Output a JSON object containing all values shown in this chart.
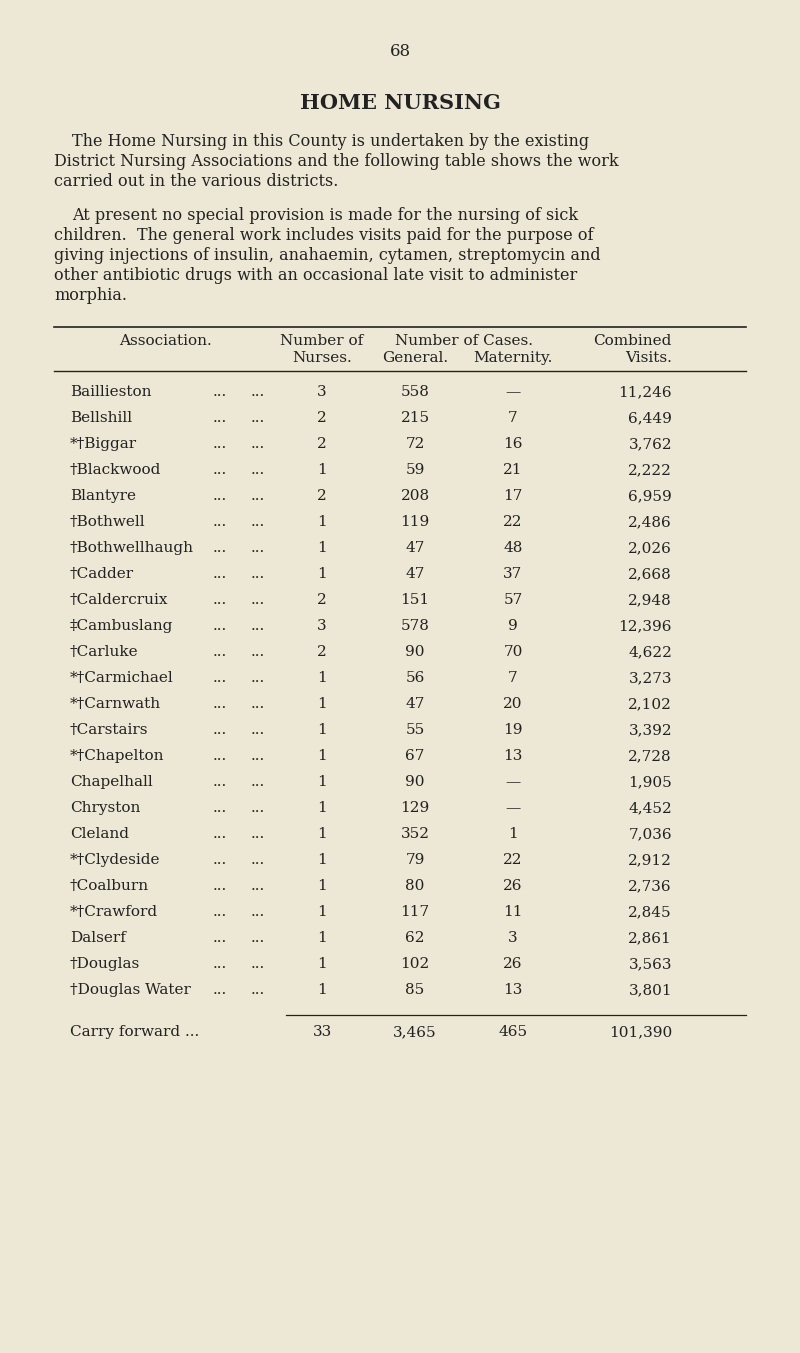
{
  "page_number": "68",
  "title": "HOME NURSING",
  "background_color": "#ede8d5",
  "text_color": "#222222",
  "p1_lines": [
    "The Home Nursing in this County is undertaken by the existing",
    "District Nursing Associations and the following table shows the work",
    "carried out in the various districts."
  ],
  "p2_lines": [
    "At present no special provision is made for the nursing of sick",
    "children.  The general work includes visits paid for the purpose of",
    "giving injections of insulin, anahaemin, cytamen, streptomycin and",
    "other antibiotic drugs with an occasional late visit to administer",
    "morphia."
  ],
  "rows": [
    [
      "Baillieston",
      "3",
      "558",
      "—",
      "11,246"
    ],
    [
      "Bellshill",
      "2",
      "215",
      "7",
      "6,449"
    ],
    [
      "*†Biggar",
      "2",
      "72",
      "16",
      "3,762"
    ],
    [
      "†Blackwood",
      "1",
      "59",
      "21",
      "2,222"
    ],
    [
      "Blantyre",
      "2",
      "208",
      "17",
      "6,959"
    ],
    [
      "†Bothwell",
      "1",
      "119",
      "22",
      "2,486"
    ],
    [
      "†Bothwellhaugh",
      "1",
      "47",
      "48",
      "2,026"
    ],
    [
      "†Cadder",
      "1",
      "47",
      "37",
      "2,668"
    ],
    [
      "†Caldercruix",
      "2",
      "151",
      "57",
      "2,948"
    ],
    [
      "‡Cambuslang",
      "3",
      "578",
      "9",
      "12,396"
    ],
    [
      "†Carluke",
      "2",
      "90",
      "70",
      "4,622"
    ],
    [
      "*†Carmichael",
      "1",
      "56",
      "7",
      "3,273"
    ],
    [
      "*†Carnwath",
      "1",
      "47",
      "20",
      "2,102"
    ],
    [
      "†Carstairs",
      "1",
      "55",
      "19",
      "3,392"
    ],
    [
      "*†Chapelton",
      "1",
      "67",
      "13",
      "2,728"
    ],
    [
      "Chapelhall",
      "1",
      "90",
      "—",
      "1,905"
    ],
    [
      "Chryston",
      "1",
      "129",
      "—",
      "4,452"
    ],
    [
      "Cleland",
      "1",
      "352",
      "1",
      "7,036"
    ],
    [
      "*†Clydeside",
      "1",
      "79",
      "22",
      "2,912"
    ],
    [
      "†Coalburn",
      "1",
      "80",
      "26",
      "2,736"
    ],
    [
      "*†Crawford",
      "1",
      "117",
      "11",
      "2,845"
    ],
    [
      "Dalserf",
      "1",
      "62",
      "3",
      "2,861"
    ],
    [
      "†Douglas",
      "1",
      "102",
      "26",
      "3,563"
    ],
    [
      "†Douglas Water",
      "1",
      "85",
      "13",
      "3,801"
    ]
  ],
  "footer": [
    "Carry forward ...",
    "33",
    "3,465",
    "465",
    "101,390"
  ]
}
